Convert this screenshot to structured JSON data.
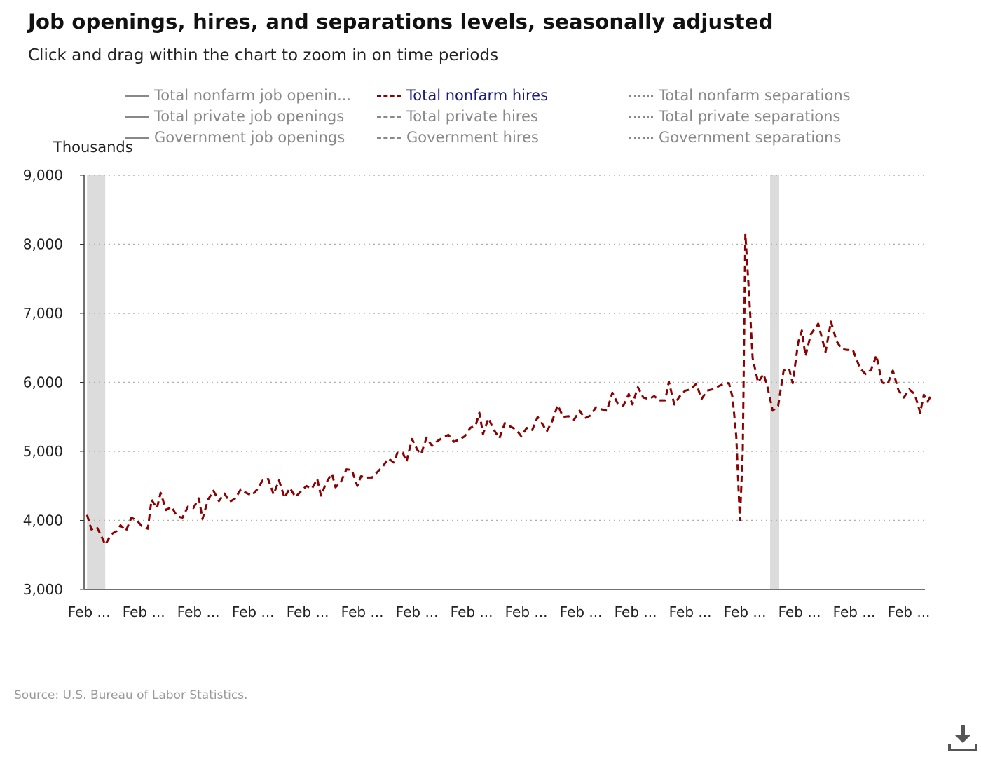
{
  "title": "Job openings, hires, and separations levels, seasonally adjusted",
  "subtitle": "Click and drag within the chart to zoom in on time periods",
  "legend": [
    {
      "label": "Total nonfarm job openin...",
      "style": "solid",
      "active": false
    },
    {
      "label": "Total nonfarm hires",
      "style": "dashed",
      "active": true
    },
    {
      "label": "Total nonfarm separations",
      "style": "dotted",
      "active": false
    },
    {
      "label": "Total private job openings",
      "style": "solid",
      "active": false
    },
    {
      "label": "Total private hires",
      "style": "dashed",
      "active": false
    },
    {
      "label": "Total private separations",
      "style": "dotted",
      "active": false
    },
    {
      "label": "Government job openings",
      "style": "solid",
      "active": false
    },
    {
      "label": "Government hires",
      "style": "dashed",
      "active": false
    },
    {
      "label": "Government separations",
      "style": "dotted",
      "active": false
    }
  ],
  "units_label": "Thousands",
  "source": "Source: U.S. Bureau of Labor Statistics.",
  "download_icon": "download-icon",
  "colors": {
    "series": "#8b0000",
    "recession": "#dcdcdc",
    "grid": "#b0b0b0",
    "legend_inactive": "#888888",
    "legend_active": "#1a1a7a"
  },
  "chart_data": {
    "type": "line",
    "ylabel": "Thousands",
    "ylim": [
      3000,
      9000
    ],
    "yticks": [
      3000,
      4000,
      5000,
      6000,
      7000,
      8000,
      9000
    ],
    "ytick_labels": [
      "3,000",
      "4,000",
      "5,000",
      "6,000",
      "7,000",
      "8,000",
      "9,000"
    ],
    "xlim": [
      2001.0,
      2024.08
    ],
    "xticks": [
      2001.08,
      2002.58,
      2004.08,
      2005.58,
      2007.08,
      2008.58,
      2010.08,
      2011.58,
      2013.08,
      2014.58,
      2016.08,
      2017.58,
      2019.08,
      2020.58,
      2022.08,
      2023.58
    ],
    "xtick_labels": [
      "Feb ...",
      "Feb ...",
      "Feb ...",
      "Feb ...",
      "Feb ...",
      "Feb ...",
      "Feb ...",
      "Feb ...",
      "Feb ...",
      "Feb ...",
      "Feb ...",
      "Feb ...",
      "Feb ...",
      "Feb ...",
      "Feb ...",
      "Feb ..."
    ],
    "grid": true,
    "recessions": [
      [
        2001.08,
        2001.58
      ],
      [
        2019.83,
        2020.08
      ]
    ],
    "series": [
      {
        "name": "Total nonfarm hires",
        "style": "dashed",
        "points": [
          [
            2001.08,
            4080
          ],
          [
            2001.2,
            3870
          ],
          [
            2001.35,
            3900
          ],
          [
            2001.45,
            3800
          ],
          [
            2001.58,
            3650
          ],
          [
            2001.75,
            3800
          ],
          [
            2001.9,
            3850
          ],
          [
            2002.0,
            3930
          ],
          [
            2002.15,
            3850
          ],
          [
            2002.3,
            4040
          ],
          [
            2002.45,
            4000
          ],
          [
            2002.58,
            3920
          ],
          [
            2002.75,
            3880
          ],
          [
            2002.85,
            4300
          ],
          [
            2003.0,
            4180
          ],
          [
            2003.1,
            4400
          ],
          [
            2003.25,
            4150
          ],
          [
            2003.4,
            4200
          ],
          [
            2003.55,
            4060
          ],
          [
            2003.7,
            4040
          ],
          [
            2003.85,
            4200
          ],
          [
            2004.0,
            4180
          ],
          [
            2004.15,
            4320
          ],
          [
            2004.25,
            4020
          ],
          [
            2004.4,
            4300
          ],
          [
            2004.55,
            4430
          ],
          [
            2004.7,
            4280
          ],
          [
            2004.85,
            4390
          ],
          [
            2005.0,
            4270
          ],
          [
            2005.15,
            4320
          ],
          [
            2005.3,
            4450
          ],
          [
            2005.45,
            4400
          ],
          [
            2005.6,
            4360
          ],
          [
            2005.75,
            4450
          ],
          [
            2005.9,
            4580
          ],
          [
            2006.05,
            4600
          ],
          [
            2006.2,
            4380
          ],
          [
            2006.35,
            4580
          ],
          [
            2006.5,
            4330
          ],
          [
            2006.65,
            4470
          ],
          [
            2006.8,
            4340
          ],
          [
            2006.95,
            4420
          ],
          [
            2007.1,
            4500
          ],
          [
            2007.25,
            4460
          ],
          [
            2007.4,
            4600
          ],
          [
            2007.5,
            4360
          ],
          [
            2007.65,
            4550
          ],
          [
            2007.8,
            4680
          ],
          [
            2007.9,
            4480
          ],
          [
            2008.05,
            4560
          ],
          [
            2008.2,
            4740
          ],
          [
            2008.35,
            4730
          ],
          [
            2008.5,
            4500
          ],
          [
            2008.6,
            4640
          ],
          [
            2008.75,
            4620
          ],
          [
            2008.9,
            4620
          ],
          [
            2009.05,
            4700
          ],
          [
            2009.2,
            4780
          ],
          [
            2009.35,
            4900
          ],
          [
            2009.5,
            4840
          ],
          [
            2009.6,
            4980
          ],
          [
            2009.75,
            4980
          ],
          [
            2009.85,
            4850
          ],
          [
            2010.0,
            5180
          ],
          [
            2010.15,
            5020
          ],
          [
            2010.25,
            4960
          ],
          [
            2010.4,
            5200
          ],
          [
            2010.55,
            5080
          ],
          [
            2010.7,
            5150
          ],
          [
            2010.85,
            5200
          ],
          [
            2011.0,
            5240
          ],
          [
            2011.15,
            5140
          ],
          [
            2011.3,
            5170
          ],
          [
            2011.45,
            5220
          ],
          [
            2011.6,
            5340
          ],
          [
            2011.75,
            5380
          ],
          [
            2011.85,
            5560
          ],
          [
            2011.95,
            5250
          ],
          [
            2012.1,
            5480
          ],
          [
            2012.25,
            5310
          ],
          [
            2012.4,
            5190
          ],
          [
            2012.55,
            5410
          ],
          [
            2012.7,
            5360
          ],
          [
            2012.85,
            5320
          ],
          [
            2013.0,
            5220
          ],
          [
            2013.15,
            5340
          ],
          [
            2013.3,
            5310
          ],
          [
            2013.45,
            5500
          ],
          [
            2013.6,
            5380
          ],
          [
            2013.7,
            5290
          ],
          [
            2013.85,
            5440
          ],
          [
            2014.0,
            5670
          ],
          [
            2014.15,
            5500
          ],
          [
            2014.3,
            5510
          ],
          [
            2014.45,
            5460
          ],
          [
            2014.6,
            5590
          ],
          [
            2014.75,
            5480
          ],
          [
            2014.9,
            5520
          ],
          [
            2015.05,
            5640
          ],
          [
            2015.2,
            5610
          ],
          [
            2015.35,
            5590
          ],
          [
            2015.5,
            5850
          ],
          [
            2015.65,
            5690
          ],
          [
            2015.8,
            5660
          ],
          [
            2015.95,
            5830
          ],
          [
            2016.05,
            5680
          ],
          [
            2016.2,
            5930
          ],
          [
            2016.35,
            5780
          ],
          [
            2016.5,
            5760
          ],
          [
            2016.65,
            5800
          ],
          [
            2016.8,
            5740
          ],
          [
            2016.95,
            5740
          ],
          [
            2017.05,
            6010
          ],
          [
            2017.2,
            5680
          ],
          [
            2017.35,
            5800
          ],
          [
            2017.5,
            5880
          ],
          [
            2017.65,
            5900
          ],
          [
            2017.8,
            5980
          ],
          [
            2017.95,
            5760
          ],
          [
            2018.1,
            5880
          ],
          [
            2018.25,
            5900
          ],
          [
            2018.4,
            5940
          ],
          [
            2018.55,
            5980
          ],
          [
            2018.7,
            5990
          ],
          [
            2018.8,
            5780
          ],
          [
            2018.9,
            5220
          ],
          [
            2019.0,
            4000
          ],
          [
            2019.08,
            5000
          ],
          [
            2019.15,
            8150
          ],
          [
            2019.25,
            7300
          ],
          [
            2019.35,
            6350
          ],
          [
            2019.5,
            6000
          ],
          [
            2019.65,
            6120
          ],
          [
            2019.75,
            5950
          ],
          [
            2019.9,
            5590
          ],
          [
            2020.05,
            5660
          ],
          [
            2020.2,
            6170
          ],
          [
            2020.35,
            6200
          ],
          [
            2020.45,
            5990
          ],
          [
            2020.6,
            6580
          ],
          [
            2020.7,
            6750
          ],
          [
            2020.8,
            6380
          ],
          [
            2020.95,
            6700
          ],
          [
            2021.15,
            6850
          ],
          [
            2021.35,
            6440
          ],
          [
            2021.5,
            6880
          ],
          [
            2021.65,
            6600
          ],
          [
            2021.8,
            6480
          ],
          [
            2021.95,
            6470
          ],
          [
            2022.1,
            6470
          ],
          [
            2022.3,
            6200
          ],
          [
            2022.45,
            6120
          ],
          [
            2022.6,
            6180
          ],
          [
            2022.75,
            6390
          ],
          [
            2022.9,
            6000
          ],
          [
            2023.05,
            5970
          ],
          [
            2023.2,
            6170
          ],
          [
            2023.35,
            5890
          ],
          [
            2023.5,
            5780
          ],
          [
            2023.65,
            5900
          ],
          [
            2023.8,
            5830
          ],
          [
            2023.95,
            5560
          ],
          [
            2024.05,
            5820
          ],
          [
            2024.15,
            5720
          ],
          [
            2024.25,
            5810
          ]
        ]
      }
    ]
  }
}
